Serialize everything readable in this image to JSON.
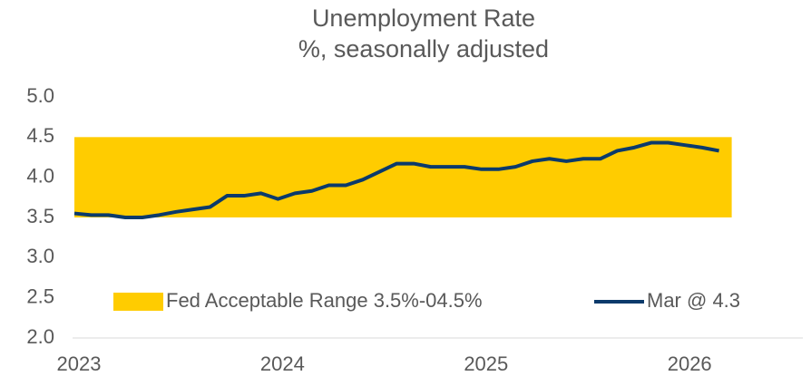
{
  "chart_data": {
    "type": "line",
    "title": "Unemployment Rate",
    "subtitle": "%, seasonally adjusted",
    "categories": [
      "2023",
      null,
      null,
      null,
      null,
      null,
      null,
      null,
      null,
      null,
      null,
      null,
      "2024",
      null,
      null,
      null,
      null,
      null,
      null,
      null,
      null,
      null,
      null,
      null,
      "2025",
      null,
      null,
      null,
      null,
      null,
      null,
      null,
      null,
      null,
      null,
      null,
      "2026",
      null,
      null
    ],
    "band": {
      "name": "Fed Acceptable Range 3.5%-04.5%",
      "color": "#ffcc00",
      "range": [
        3.5,
        4.5
      ]
    },
    "series": [
      {
        "name": "Mar @ 4.3",
        "color": "#0b3a6b",
        "values": [
          3.55,
          3.53,
          3.53,
          3.5,
          3.5,
          3.53,
          3.57,
          3.6,
          3.63,
          3.77,
          3.77,
          3.8,
          3.73,
          3.8,
          3.83,
          3.9,
          3.9,
          3.97,
          4.07,
          4.17,
          4.17,
          4.13,
          4.13,
          4.13,
          4.1,
          4.1,
          4.13,
          4.2,
          4.23,
          4.2,
          4.23,
          4.23,
          4.33,
          4.37,
          4.43,
          4.43,
          4.4,
          4.37,
          4.33
        ]
      }
    ],
    "ylim": [
      2.0,
      5.0
    ],
    "yticks": [
      {
        "value": 2,
        "label": "2.0"
      },
      2.5,
      {
        "value": 3,
        "label": "3.0"
      },
      3.5,
      {
        "value": 4,
        "label": "4.0"
      },
      4.5,
      {
        "value": 5,
        "label": "5.0"
      }
    ]
  }
}
